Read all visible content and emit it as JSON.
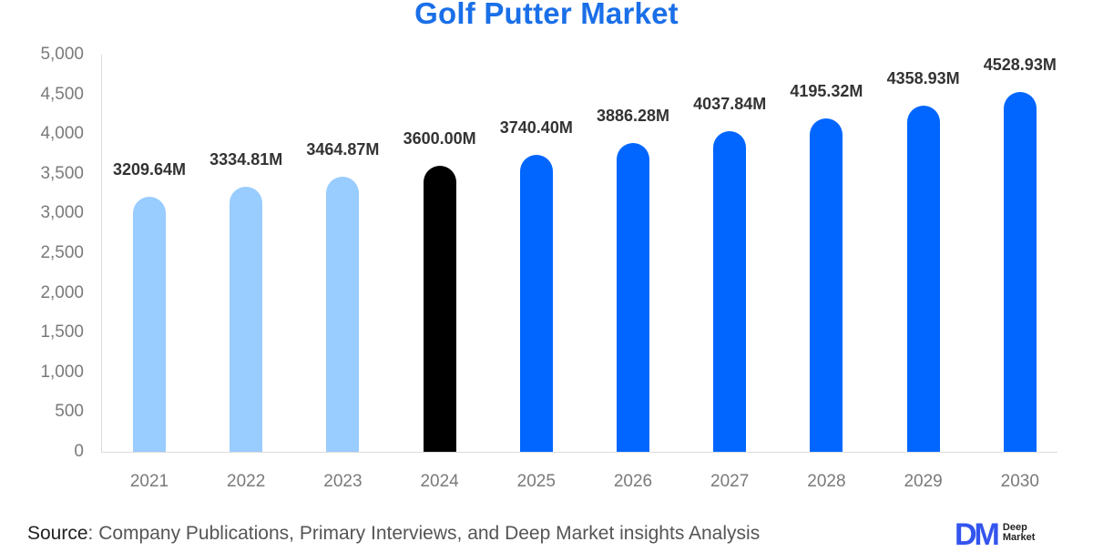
{
  "chart_data": {
    "type": "bar",
    "title": "Golf Putter Market",
    "xlabel": "",
    "ylabel": "",
    "ylim": [
      0,
      5000
    ],
    "yticks": [
      "0",
      "500",
      "1,000",
      "1,500",
      "2,000",
      "2,500",
      "3,000",
      "3,500",
      "4,000",
      "4,500",
      "5,000"
    ],
    "categories": [
      "2021",
      "2022",
      "2023",
      "2024",
      "2025",
      "2026",
      "2027",
      "2028",
      "2029",
      "2030"
    ],
    "values": [
      3209.64,
      3334.81,
      3464.87,
      3600.0,
      3740.4,
      3886.28,
      4037.84,
      4195.32,
      4358.93,
      4528.93
    ],
    "data_labels": [
      "3209.64M",
      "3334.81M",
      "3464.87M",
      "3600.00M",
      "3740.40M",
      "3886.28M",
      "4037.84M",
      "4195.32M",
      "4358.93M",
      "4528.93M"
    ],
    "bar_colors": [
      "#99CCFF",
      "#99CCFF",
      "#99CCFF",
      "#000000",
      "#0066FF",
      "#0066FF",
      "#0066FF",
      "#0066FF",
      "#0066FF",
      "#0066FF"
    ],
    "grid": false,
    "legend": null
  },
  "title": "Golf Putter Market",
  "footer": {
    "source_label": "Source",
    "source_text": ": Company Publications, Primary Interviews, and Deep Market insights Analysis"
  },
  "logo": {
    "mark": "DM",
    "line1": "Deep",
    "line2": "Market"
  },
  "colors": {
    "title": "#1a6fe8",
    "historical": "#99CCFF",
    "base_year": "#000000",
    "forecast": "#0066FF"
  }
}
